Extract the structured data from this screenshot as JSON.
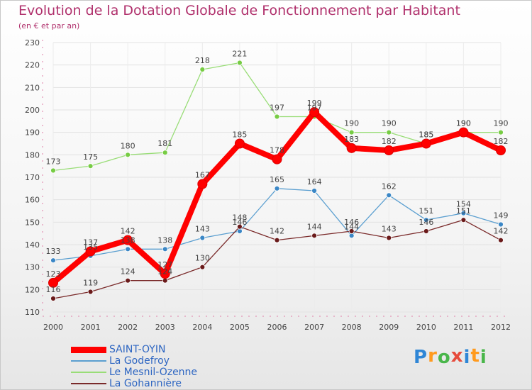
{
  "title": "Evolution de la Dotation Globale de Fonctionnement par Habitant",
  "subtitle": "(en € et par an)",
  "logo": {
    "text": "Proxiti",
    "letters": [
      "P",
      "r",
      "o",
      "x",
      "i",
      "t",
      "i"
    ],
    "colors": [
      "#2f86d6",
      "#ff9a1e",
      "#49b64a",
      "#e64b3c",
      "#2f86d6",
      "#ff9a1e",
      "#49b64a"
    ]
  },
  "chart_data": {
    "type": "line",
    "title": "Evolution de la Dotation Globale de Fonctionnement par Habitant",
    "subtitle": "(en € et par an)",
    "xlabel": "",
    "ylabel": "",
    "categories": [
      "2000",
      "2001",
      "2002",
      "2003",
      "2004",
      "2005",
      "2006",
      "2007",
      "2008",
      "2009",
      "2010",
      "2011",
      "2012"
    ],
    "ylim": [
      110,
      230
    ],
    "yticks": [
      110,
      120,
      130,
      140,
      150,
      160,
      170,
      180,
      190,
      200,
      210,
      220,
      230
    ],
    "grid": true,
    "legend_position": "bottom-left",
    "series": [
      {
        "name": "SAINT-OYIN",
        "color": "#ff0000",
        "marker_color": "#ff0000",
        "style": "thick",
        "values": [
          123,
          137,
          142,
          127,
          167,
          185,
          178,
          199,
          183,
          182,
          185,
          190,
          182
        ],
        "labels": [
          "123",
          "137",
          "142",
          "127",
          "167",
          "185",
          "178",
          "199",
          "183",
          "182",
          "185",
          "190",
          "182"
        ]
      },
      {
        "name": "La Godefroy",
        "color": "#5b9fd0",
        "marker_color": "#3b87c6",
        "style": "thin",
        "values": [
          133,
          135,
          138,
          138,
          143,
          146,
          165,
          164,
          144,
          162,
          151,
          154,
          149
        ],
        "labels": [
          "133",
          "135",
          "138",
          "138",
          "143",
          "146",
          "165",
          "164",
          "144",
          "162",
          "151",
          "154",
          "149"
        ]
      },
      {
        "name": "Le Mesnil-Ozenne",
        "color": "#99dd77",
        "marker_color": "#77cc44",
        "style": "thin",
        "values": [
          173,
          175,
          180,
          181,
          218,
          221,
          197,
          197,
          190,
          190,
          185,
          190,
          190
        ],
        "labels": [
          "173",
          "175",
          "180",
          "181",
          "218",
          "221",
          "197",
          "197",
          "190",
          "190",
          "185",
          "190",
          "190"
        ]
      },
      {
        "name": "La Gohannière",
        "color": "#7a2a2a",
        "marker_color": "#6a1a1a",
        "style": "thin",
        "values": [
          116,
          119,
          124,
          124,
          130,
          148,
          142,
          144,
          146,
          143,
          146,
          151,
          142
        ],
        "labels": [
          "116",
          "119",
          "124",
          "124",
          "130",
          "148",
          "142",
          "144",
          "146",
          "143",
          "146",
          "151",
          "142"
        ]
      }
    ]
  }
}
